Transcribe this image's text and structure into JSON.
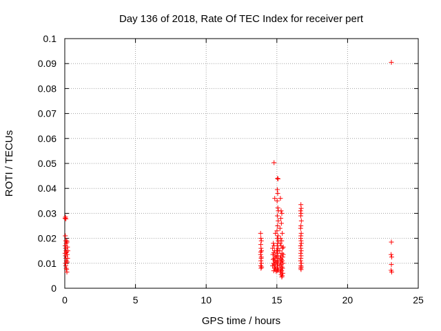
{
  "chart_data": {
    "type": "scatter",
    "title": "Day 136 of 2018, Rate Of TEC Index for receiver pert",
    "xlabel": "GPS time / hours",
    "ylabel": "ROTI / TECUs",
    "xlim": [
      0,
      25
    ],
    "ylim": [
      0,
      0.1
    ],
    "x_ticks": [
      "0",
      "5",
      "10",
      "15",
      "20",
      "25"
    ],
    "y_ticks": [
      "0",
      "0.01",
      "0.02",
      "0.03",
      "0.04",
      "0.05",
      "0.06",
      "0.07",
      "0.08",
      "0.09",
      "0.1"
    ],
    "grid": true,
    "marker": "+",
    "color": "#ff0000",
    "series": [
      {
        "points": [
          [
            0.02,
            0.028
          ],
          [
            0.05,
            0.0285
          ],
          [
            0.08,
            0.0278
          ],
          [
            0.04,
            0.021
          ],
          [
            0.07,
            0.019
          ],
          [
            0.1,
            0.018
          ],
          [
            0.03,
            0.017
          ],
          [
            0.06,
            0.016
          ],
          [
            0.09,
            0.015
          ],
          [
            0.12,
            0.0145
          ],
          [
            0.02,
            0.014
          ],
          [
            0.05,
            0.013
          ],
          [
            0.08,
            0.012
          ],
          [
            0.11,
            0.011
          ],
          [
            0.04,
            0.01
          ],
          [
            0.07,
            0.009
          ],
          [
            0.1,
            0.008
          ],
          [
            0.13,
            0.0075
          ],
          [
            0.15,
            0.0065
          ],
          [
            0.18,
            0.0105
          ],
          [
            0.2,
            0.012
          ],
          [
            0.17,
            0.0135
          ],
          [
            0.22,
            0.015
          ],
          [
            0.19,
            0.0165
          ],
          [
            0.16,
            0.0185
          ],
          [
            0.14,
            0.019
          ],
          [
            13.85,
            0.022
          ],
          [
            13.87,
            0.02
          ],
          [
            13.9,
            0.019
          ],
          [
            13.86,
            0.0175
          ],
          [
            13.88,
            0.016
          ],
          [
            13.91,
            0.015
          ],
          [
            13.85,
            0.0135
          ],
          [
            13.89,
            0.012
          ],
          [
            13.87,
            0.011
          ],
          [
            13.9,
            0.01
          ],
          [
            13.86,
            0.009
          ],
          [
            13.88,
            0.008
          ],
          [
            13.92,
            0.0085
          ],
          [
            13.9,
            0.0125
          ],
          [
            13.86,
            0.0145
          ],
          [
            14.8,
            0.0503
          ],
          [
            14.85,
            0.036
          ],
          [
            14.9,
            0.022
          ],
          [
            14.75,
            0.018
          ],
          [
            14.8,
            0.017
          ],
          [
            14.7,
            0.016
          ],
          [
            14.85,
            0.015
          ],
          [
            14.78,
            0.0142
          ],
          [
            14.72,
            0.0135
          ],
          [
            14.88,
            0.013
          ],
          [
            14.8,
            0.012
          ],
          [
            14.74,
            0.0115
          ],
          [
            14.86,
            0.011
          ],
          [
            14.9,
            0.0105
          ],
          [
            14.76,
            0.01
          ],
          [
            14.82,
            0.0095
          ],
          [
            14.7,
            0.009
          ],
          [
            14.88,
            0.0085
          ],
          [
            14.84,
            0.008
          ],
          [
            14.92,
            0.0075
          ],
          [
            14.78,
            0.007
          ],
          [
            14.95,
            0.0068
          ],
          [
            14.98,
            0.0105
          ],
          [
            14.96,
            0.0125
          ],
          [
            14.99,
            0.015
          ],
          [
            15.05,
            0.044
          ],
          [
            15.08,
            0.0438
          ],
          [
            15.03,
            0.0395
          ],
          [
            15.06,
            0.038
          ],
          [
            15.02,
            0.035
          ],
          [
            15.07,
            0.0322
          ],
          [
            15.1,
            0.031
          ],
          [
            15.04,
            0.029
          ],
          [
            15.09,
            0.027
          ],
          [
            15.05,
            0.025
          ],
          [
            15.01,
            0.023
          ],
          [
            15.08,
            0.021
          ],
          [
            15.03,
            0.02
          ],
          [
            15.1,
            0.019
          ],
          [
            15.06,
            0.018
          ],
          [
            15.02,
            0.017
          ],
          [
            15.09,
            0.016
          ],
          [
            15.04,
            0.015
          ],
          [
            15.07,
            0.014
          ],
          [
            15.01,
            0.013
          ],
          [
            15.1,
            0.012
          ],
          [
            15.05,
            0.011
          ],
          [
            15.08,
            0.01
          ],
          [
            15.03,
            0.009
          ],
          [
            15.06,
            0.008
          ],
          [
            15.1,
            0.0075
          ],
          [
            15.02,
            0.007
          ],
          [
            15.25,
            0.036
          ],
          [
            15.3,
            0.031
          ],
          [
            15.35,
            0.03
          ],
          [
            15.28,
            0.028
          ],
          [
            15.32,
            0.026
          ],
          [
            15.22,
            0.024
          ],
          [
            15.38,
            0.022
          ],
          [
            15.26,
            0.02
          ],
          [
            15.34,
            0.019
          ],
          [
            15.24,
            0.018
          ],
          [
            15.3,
            0.017
          ],
          [
            15.4,
            0.016
          ],
          [
            15.2,
            0.015
          ],
          [
            15.36,
            0.014
          ],
          [
            15.28,
            0.013
          ],
          [
            15.42,
            0.0125
          ],
          [
            15.22,
            0.012
          ],
          [
            15.32,
            0.0115
          ],
          [
            15.38,
            0.011
          ],
          [
            15.26,
            0.0105
          ],
          [
            15.44,
            0.01
          ],
          [
            15.3,
            0.0095
          ],
          [
            15.2,
            0.009
          ],
          [
            15.36,
            0.0085
          ],
          [
            15.4,
            0.008
          ],
          [
            15.28,
            0.0075
          ],
          [
            15.34,
            0.007
          ],
          [
            15.24,
            0.0065
          ],
          [
            15.42,
            0.006
          ],
          [
            15.3,
            0.0055
          ],
          [
            15.38,
            0.005
          ],
          [
            15.35,
            0.0045
          ],
          [
            15.45,
            0.0135
          ],
          [
            15.45,
            0.0165
          ],
          [
            16.7,
            0.0335
          ],
          [
            16.72,
            0.032
          ],
          [
            16.68,
            0.031
          ],
          [
            16.71,
            0.03
          ],
          [
            16.69,
            0.029
          ],
          [
            16.73,
            0.027
          ],
          [
            16.7,
            0.025
          ],
          [
            16.68,
            0.024
          ],
          [
            16.72,
            0.022
          ],
          [
            16.7,
            0.021
          ],
          [
            16.69,
            0.02
          ],
          [
            16.71,
            0.019
          ],
          [
            16.73,
            0.018
          ],
          [
            16.68,
            0.017
          ],
          [
            16.7,
            0.016
          ],
          [
            16.72,
            0.015
          ],
          [
            16.69,
            0.014
          ],
          [
            16.71,
            0.013
          ],
          [
            16.7,
            0.012
          ],
          [
            16.68,
            0.011
          ],
          [
            16.73,
            0.01
          ],
          [
            16.7,
            0.009
          ],
          [
            16.72,
            0.0085
          ],
          [
            16.69,
            0.008
          ],
          [
            16.71,
            0.0075
          ],
          [
            23.1,
            0.0905
          ],
          [
            23.1,
            0.0185
          ],
          [
            23.08,
            0.0135
          ],
          [
            23.12,
            0.0125
          ],
          [
            23.1,
            0.0095
          ],
          [
            23.08,
            0.0072
          ],
          [
            23.12,
            0.0065
          ]
        ]
      }
    ]
  }
}
